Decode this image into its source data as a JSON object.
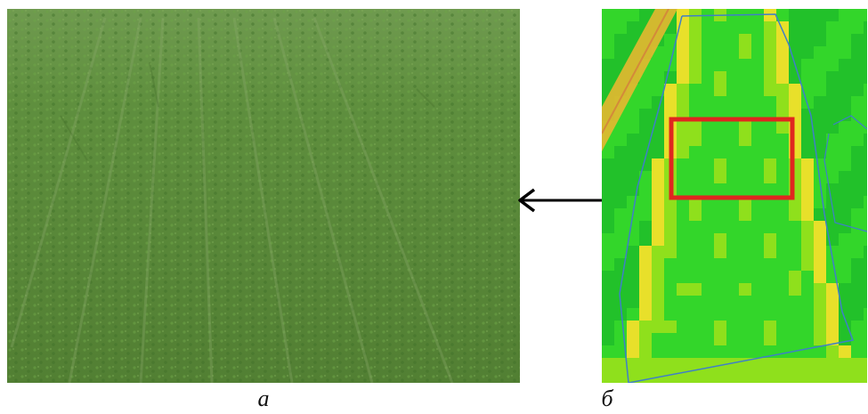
{
  "captions": {
    "a": "а",
    "b": "б"
  },
  "colors": {
    "field_photo_base": "#5e8f3b",
    "ndvi_high": "#33d62a",
    "ndvi_mid": "#8fe01c",
    "ndvi_low": "#e8e02a",
    "ndvi_lowest": "#e79a25",
    "selection_box": "#e0261f",
    "field_boundary": "#3f7fc8",
    "arrow": "#000000"
  }
}
